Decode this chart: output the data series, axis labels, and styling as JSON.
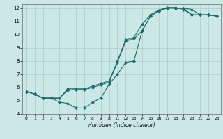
{
  "title": "",
  "xlabel": "Humidex (Indice chaleur)",
  "ylabel": "",
  "bg_color": "#cce8e6",
  "grid_color": "#aaccca",
  "line_color": "#1a6b6b",
  "xlim": [
    -0.5,
    23.5
  ],
  "ylim": [
    4,
    12.3
  ],
  "xticks": [
    0,
    1,
    2,
    3,
    4,
    5,
    6,
    7,
    8,
    9,
    10,
    11,
    12,
    13,
    14,
    15,
    16,
    17,
    18,
    19,
    20,
    21,
    22,
    23
  ],
  "yticks": [
    4,
    5,
    6,
    7,
    8,
    9,
    10,
    11,
    12
  ],
  "line1_x": [
    0,
    1,
    2,
    3,
    4,
    5,
    6,
    7,
    8,
    9,
    10,
    11,
    12,
    13,
    14,
    15,
    16,
    17,
    18,
    19,
    20,
    21,
    22,
    23
  ],
  "line1_y": [
    5.7,
    5.5,
    5.2,
    5.2,
    4.9,
    4.8,
    4.45,
    4.45,
    4.9,
    5.2,
    6.25,
    7.0,
    7.9,
    8.0,
    10.3,
    11.4,
    11.8,
    12.0,
    12.0,
    12.0,
    11.9,
    11.5,
    11.5,
    11.4
  ],
  "line2_x": [
    0,
    1,
    2,
    3,
    4,
    5,
    6,
    7,
    8,
    9,
    10,
    11,
    12,
    13,
    14,
    15,
    16,
    17,
    18,
    19,
    20,
    21,
    22,
    23
  ],
  "line2_y": [
    5.7,
    5.5,
    5.2,
    5.2,
    5.2,
    5.8,
    5.85,
    5.85,
    6.0,
    6.2,
    6.4,
    7.9,
    9.5,
    9.7,
    10.3,
    11.4,
    11.8,
    12.0,
    12.0,
    12.0,
    11.5,
    11.5,
    11.5,
    11.4
  ],
  "line3_x": [
    0,
    1,
    2,
    3,
    4,
    5,
    6,
    7,
    8,
    9,
    10,
    11,
    12,
    13,
    14,
    15,
    16,
    17,
    18,
    19,
    20,
    21,
    22,
    23
  ],
  "line3_y": [
    5.7,
    5.5,
    5.2,
    5.2,
    5.2,
    5.9,
    5.9,
    5.9,
    6.1,
    6.3,
    6.5,
    8.0,
    9.6,
    9.8,
    10.8,
    11.5,
    11.85,
    12.05,
    12.05,
    11.9,
    11.5,
    11.5,
    11.5,
    11.4
  ]
}
